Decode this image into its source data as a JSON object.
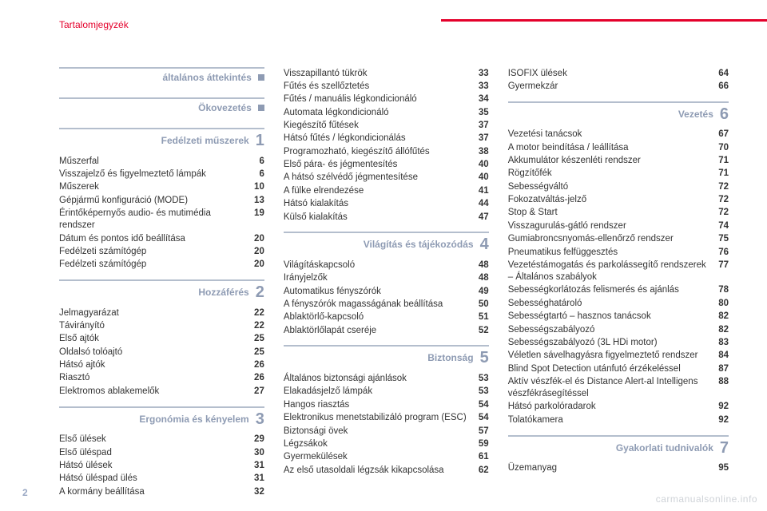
{
  "header": {
    "title": "Tartalomjegyzék"
  },
  "pageNumber": "2",
  "watermark": "carmanualsonline.info",
  "col1": [
    {
      "title": "általános áttekintés",
      "marker": "square",
      "items": []
    },
    {
      "title": "Ökovezetés",
      "marker": "square",
      "items": []
    },
    {
      "title": "Fedélzeti műszerek",
      "marker": "1",
      "items": [
        {
          "label": "Műszerfal",
          "pg": "6"
        },
        {
          "label": "Visszajelző és figyelmeztető lámpák",
          "pg": "6"
        },
        {
          "label": "Műszerek",
          "pg": "10"
        },
        {
          "label": "Gépjármű konfiguráció (MODE)",
          "pg": "13"
        },
        {
          "label": "Érintőképernyős audio- és mutimédia rendszer",
          "pg": "19"
        },
        {
          "label": "Dátum és pontos idő beállítása",
          "pg": "20"
        },
        {
          "label": "Fedélzeti számítógép",
          "pg": "20"
        },
        {
          "label": "Fedélzeti számítógép",
          "pg": "20"
        }
      ]
    },
    {
      "title": "Hozzáférés",
      "marker": "2",
      "items": [
        {
          "label": "Jelmagyarázat",
          "pg": "22"
        },
        {
          "label": "Távirányító",
          "pg": "22"
        },
        {
          "label": "Első ajtók",
          "pg": "25"
        },
        {
          "label": "Oldalsó tolóajtó",
          "pg": "25"
        },
        {
          "label": "Hátsó ajtók",
          "pg": "26"
        },
        {
          "label": "Riasztó",
          "pg": "26"
        },
        {
          "label": "Elektromos ablakemelők",
          "pg": "27"
        }
      ]
    },
    {
      "title": "Ergonómia és kényelem",
      "marker": "3",
      "items": [
        {
          "label": "Első ülések",
          "pg": "29"
        },
        {
          "label": "Első üléspad",
          "pg": "30"
        },
        {
          "label": "Hátsó ülések",
          "pg": "31"
        },
        {
          "label": "Hátsó üléspad ülés",
          "pg": "31"
        },
        {
          "label": "A kormány beállítása",
          "pg": "32"
        }
      ]
    }
  ],
  "col2": [
    {
      "title": null,
      "marker": null,
      "items": [
        {
          "label": "Visszapillantó tükrök",
          "pg": "33"
        },
        {
          "label": "Fűtés és szellőztetés",
          "pg": "33"
        },
        {
          "label": "Fűtés / manuális légkondicionáló",
          "pg": "34"
        },
        {
          "label": "Automata légkondicionáló",
          "pg": "35"
        },
        {
          "label": "Kiegészítő fűtések",
          "pg": "37"
        },
        {
          "label": "Hátsó fűtés / légkondicionálás",
          "pg": "37"
        },
        {
          "label": "Programozható, kiegészítő állófűtés",
          "pg": "38"
        },
        {
          "label": "Első pára- és jégmentesítés",
          "pg": "40"
        },
        {
          "label": "A hátsó szélvédő jégmentesítése",
          "pg": "40"
        },
        {
          "label": "A fülke elrendezése",
          "pg": "41"
        },
        {
          "label": "Hátsó kialakítás",
          "pg": "44"
        },
        {
          "label": "Külső kialakítás",
          "pg": "47"
        }
      ]
    },
    {
      "title": "Világítás és tájékozódás",
      "marker": "4",
      "items": [
        {
          "label": "Világításkapcsoló",
          "pg": "48"
        },
        {
          "label": "Irányjelzők",
          "pg": "48"
        },
        {
          "label": "Automatikus fényszórók",
          "pg": "49"
        },
        {
          "label": "A fényszórók magasságának beállítása",
          "pg": "50"
        },
        {
          "label": "Ablaktörlő-kapcsoló",
          "pg": "51"
        },
        {
          "label": "Ablaktörlőlapát cseréje",
          "pg": "52"
        }
      ]
    },
    {
      "title": "Biztonság",
      "marker": "5",
      "items": [
        {
          "label": "Általános biztonsági ajánlások",
          "pg": "53"
        },
        {
          "label": "Elakadásjelző lámpák",
          "pg": "53"
        },
        {
          "label": "Hangos riasztás",
          "pg": "54"
        },
        {
          "label": "Elektronikus menetstabilizáló program (ESC)",
          "pg": "54"
        },
        {
          "label": "Biztonsági övek",
          "pg": "57"
        },
        {
          "label": "Légzsákok",
          "pg": "59"
        },
        {
          "label": "Gyermekülések",
          "pg": "61"
        },
        {
          "label": "Az első utasoldali légzsák kikapcsolása",
          "pg": "62"
        }
      ]
    }
  ],
  "col3": [
    {
      "title": null,
      "marker": null,
      "items": [
        {
          "label": "ISOFIX ülések",
          "pg": "64"
        },
        {
          "label": "Gyermekzár",
          "pg": "66"
        }
      ]
    },
    {
      "title": "Vezetés",
      "marker": "6",
      "items": [
        {
          "label": "Vezetési tanácsok",
          "pg": "67"
        },
        {
          "label": "A motor beindítása / leállítása",
          "pg": "70"
        },
        {
          "label": "Akkumulátor készenléti rendszer",
          "pg": "71"
        },
        {
          "label": "Rögzítőfék",
          "pg": "71"
        },
        {
          "label": "Sebességváltó",
          "pg": "72"
        },
        {
          "label": "Fokozatváltás-jelző",
          "pg": "72"
        },
        {
          "label": "Stop & Start",
          "pg": "72"
        },
        {
          "label": "Visszagurulás-gátló rendszer",
          "pg": "74"
        },
        {
          "label": "Gumiabroncsnyomás-ellenőrző rendszer",
          "pg": "75"
        },
        {
          "label": "Pneumatikus felfüggesztés",
          "pg": "76"
        },
        {
          "label": "Vezetéstámogatás és parkolássegítő rendszerek – Általános szabályok",
          "pg": "77"
        },
        {
          "label": "Sebességkorlátozás felismerés és ajánlás",
          "pg": "78"
        },
        {
          "label": "Sebességhatároló",
          "pg": "80"
        },
        {
          "label": "Sebességtartó – hasznos tanácsok",
          "pg": "82"
        },
        {
          "label": "Sebességszabályozó",
          "pg": "82"
        },
        {
          "label": "Sebességszabályozó (3L HDi motor)",
          "pg": "83"
        },
        {
          "label": "Véletlen sávelhagyásra figyelmeztető rendszer",
          "pg": "84"
        },
        {
          "label": "Blind Spot Detection utánfutó érzékeléssel",
          "pg": "87"
        },
        {
          "label": "Aktív vészfék-el és Distance Alert-al Intelligens vészfékrásegítéssel",
          "pg": "88"
        },
        {
          "label": "Hátsó parkolóradarok",
          "pg": "92"
        },
        {
          "label": "Tolatókamera",
          "pg": "92"
        }
      ]
    },
    {
      "title": "Gyakorlati tudnivalók",
      "marker": "7",
      "items": [
        {
          "label": "Üzemanyag",
          "pg": "95"
        }
      ]
    }
  ]
}
